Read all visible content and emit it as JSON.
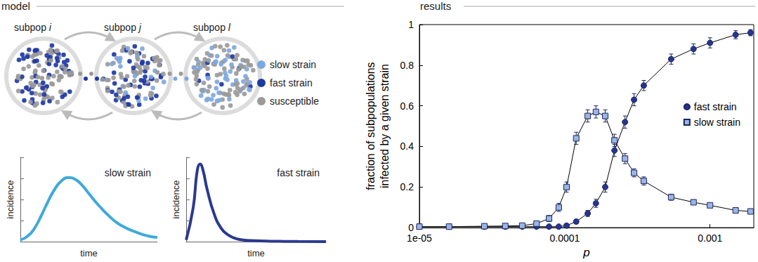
{
  "header": {
    "left": "model",
    "right": "results"
  },
  "diagram": {
    "subpops": [
      {
        "label": "subpop",
        "index": "i"
      },
      {
        "label": "subpop",
        "index": "j"
      },
      {
        "label": "subpop",
        "index": "l"
      }
    ],
    "legend": [
      {
        "label": "slow strain",
        "color": "#7fa8e0"
      },
      {
        "label": "fast strain",
        "color": "#1e3aa6"
      },
      {
        "label": "susceptible",
        "color": "#9a9a9a"
      }
    ]
  },
  "chart_data": [
    {
      "type": "line",
      "annotation": "slow strain",
      "xlabel": "time",
      "ylabel": "incidence",
      "color": "#3ea9db",
      "x": [
        0,
        0.5,
        1,
        1.5,
        2,
        2.5,
        3,
        3.5,
        4,
        4.5,
        5,
        5.5,
        6,
        6.5,
        7,
        7.5,
        8,
        8.5,
        9,
        9.5,
        10
      ],
      "values": [
        0.02,
        0.06,
        0.15,
        0.3,
        0.47,
        0.62,
        0.72,
        0.76,
        0.74,
        0.67,
        0.57,
        0.47,
        0.38,
        0.3,
        0.23,
        0.18,
        0.14,
        0.11,
        0.08,
        0.06,
        0.05
      ],
      "xlim": [
        0,
        10
      ],
      "ylim": [
        0,
        1
      ],
      "yticks": [
        0,
        0.25,
        0.5,
        0.75,
        1
      ],
      "tick_labels": false
    },
    {
      "type": "line",
      "annotation": "fast strain",
      "xlabel": "time",
      "ylabel": "incidence",
      "color": "#2b3990",
      "x": [
        0,
        0.5,
        0.8,
        1,
        1.2,
        1.5,
        2,
        2.5,
        3,
        3.5,
        4,
        5,
        6,
        7,
        8,
        10
      ],
      "values": [
        0.02,
        0.4,
        0.85,
        0.92,
        0.85,
        0.62,
        0.33,
        0.16,
        0.08,
        0.04,
        0.02,
        0.01,
        0.005,
        0.003,
        0.002,
        0.001
      ],
      "xlim": [
        0,
        10
      ],
      "ylim": [
        0,
        1
      ],
      "yticks": [
        0,
        0.25,
        0.5,
        0.75,
        1
      ],
      "tick_labels": false
    },
    {
      "type": "line",
      "xlabel": "p",
      "ylabel": "fraction of subpopulations\ninfected by a given strain",
      "log": "x",
      "grid": false,
      "legend": "right",
      "x": [
        1e-05,
        1.6e-05,
        2.8e-05,
        3.9e-05,
        5.1e-05,
        6.4e-05,
        7.8e-05,
        9.1e-05,
        0.000103,
        0.00012,
        0.000144,
        0.000164,
        0.00019,
        0.00022,
        0.00026,
        0.0003,
        0.00035,
        0.00054,
        0.00077,
        0.001,
        0.0015,
        0.0019
      ],
      "series": [
        {
          "name": "fast strain",
          "color": "#27358f",
          "marker": "circle",
          "values": [
            0.005,
            0.005,
            0.005,
            0.005,
            0.005,
            0.005,
            0.005,
            0.005,
            0.01,
            0.03,
            0.07,
            0.12,
            0.2,
            0.38,
            0.52,
            0.63,
            0.7,
            0.83,
            0.88,
            0.91,
            0.95,
            0.96
          ],
          "errors": [
            0.004,
            0.004,
            0.004,
            0.004,
            0.004,
            0.004,
            0.004,
            0.005,
            0.006,
            0.01,
            0.015,
            0.02,
            0.025,
            0.03,
            0.03,
            0.03,
            0.025,
            0.025,
            0.025,
            0.025,
            0.02,
            0.015
          ]
        },
        {
          "name": "slow strain",
          "color": "#9db5e3",
          "marker": "square",
          "values": [
            0.005,
            0.005,
            0.007,
            0.008,
            0.01,
            0.02,
            0.045,
            0.1,
            0.2,
            0.44,
            0.55,
            0.57,
            0.55,
            0.43,
            0.34,
            0.27,
            0.23,
            0.15,
            0.125,
            0.11,
            0.085,
            0.08
          ],
          "errors": [
            0.004,
            0.004,
            0.004,
            0.005,
            0.006,
            0.01,
            0.015,
            0.02,
            0.025,
            0.03,
            0.03,
            0.03,
            0.03,
            0.03,
            0.025,
            0.02,
            0.02,
            0.015,
            0.01,
            0.01,
            0.01,
            0.01
          ]
        }
      ],
      "xlim": [
        1e-05,
        0.002
      ],
      "ylim": [
        0,
        1
      ],
      "xticks": [
        {
          "value": 1e-05,
          "label": "1e-05"
        },
        {
          "value": 0.0001,
          "label": "0.0001"
        },
        0.001
      ],
      "yticks": [
        0,
        0.2,
        0.4,
        0.6,
        0.8,
        1
      ]
    }
  ]
}
